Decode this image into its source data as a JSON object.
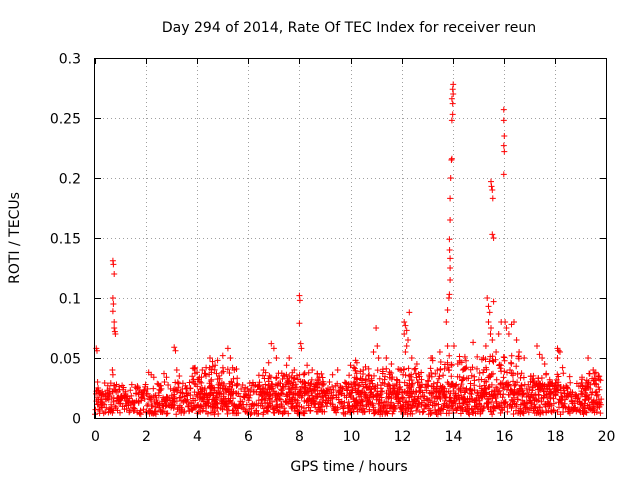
{
  "chart_data": {
    "type": "scatter",
    "title": "Day 294 of 2014, Rate Of TEC Index for receiver reun",
    "xlabel": "GPS time / hours",
    "ylabel": "ROTI / TECUs",
    "xlim": [
      0,
      20
    ],
    "ylim": [
      0,
      0.3
    ],
    "xticks": [
      0,
      2,
      4,
      6,
      8,
      10,
      12,
      14,
      16,
      18,
      20
    ],
    "yticks": [
      0,
      0.05,
      0.1,
      0.15,
      0.2,
      0.25,
      0.3
    ],
    "xtick_labels": [
      "0",
      "2",
      "4",
      "6",
      "8",
      "10",
      "12",
      "14",
      "16",
      "18",
      "20"
    ],
    "ytick_labels": [
      "0",
      "0.05",
      "0.1",
      "0.15",
      "0.2",
      "0.25",
      "0.3"
    ],
    "grid": true,
    "marker": "plus",
    "marker_color": "#ff0000",
    "baseline": {
      "x_start": 0.0,
      "x_end": 19.8,
      "step": 0.02,
      "y_min": 0.003,
      "y_max": 0.03
    },
    "points": [
      {
        "x": 0.05,
        "y": 0.058
      },
      {
        "x": 0.08,
        "y": 0.056
      },
      {
        "x": 0.1,
        "y": 0.03
      },
      {
        "x": 0.12,
        "y": 0.025
      },
      {
        "x": 0.7,
        "y": 0.131
      },
      {
        "x": 0.72,
        "y": 0.128
      },
      {
        "x": 0.75,
        "y": 0.12
      },
      {
        "x": 0.7,
        "y": 0.1
      },
      {
        "x": 0.72,
        "y": 0.095
      },
      {
        "x": 0.7,
        "y": 0.089
      },
      {
        "x": 0.75,
        "y": 0.08
      },
      {
        "x": 0.75,
        "y": 0.075
      },
      {
        "x": 0.78,
        "y": 0.072
      },
      {
        "x": 0.8,
        "y": 0.07
      },
      {
        "x": 0.68,
        "y": 0.04
      },
      {
        "x": 0.7,
        "y": 0.036
      },
      {
        "x": 2.1,
        "y": 0.038
      },
      {
        "x": 2.2,
        "y": 0.036
      },
      {
        "x": 2.3,
        "y": 0.034
      },
      {
        "x": 2.7,
        "y": 0.037
      },
      {
        "x": 2.8,
        "y": 0.034
      },
      {
        "x": 3.1,
        "y": 0.059
      },
      {
        "x": 3.15,
        "y": 0.056
      },
      {
        "x": 3.2,
        "y": 0.04
      },
      {
        "x": 3.3,
        "y": 0.035
      },
      {
        "x": 4.5,
        "y": 0.05
      },
      {
        "x": 4.6,
        "y": 0.047
      },
      {
        "x": 4.7,
        "y": 0.044
      },
      {
        "x": 4.8,
        "y": 0.048
      },
      {
        "x": 5.0,
        "y": 0.052
      },
      {
        "x": 5.2,
        "y": 0.058
      },
      {
        "x": 5.3,
        "y": 0.05
      },
      {
        "x": 4.2,
        "y": 0.04
      },
      {
        "x": 4.35,
        "y": 0.042
      },
      {
        "x": 6.8,
        "y": 0.046
      },
      {
        "x": 6.9,
        "y": 0.062
      },
      {
        "x": 7.0,
        "y": 0.058
      },
      {
        "x": 7.1,
        "y": 0.05
      },
      {
        "x": 6.6,
        "y": 0.04
      },
      {
        "x": 7.5,
        "y": 0.044
      },
      {
        "x": 7.6,
        "y": 0.05
      },
      {
        "x": 7.8,
        "y": 0.04
      },
      {
        "x": 8.0,
        "y": 0.102
      },
      {
        "x": 8.02,
        "y": 0.098
      },
      {
        "x": 8.0,
        "y": 0.079
      },
      {
        "x": 8.05,
        "y": 0.062
      },
      {
        "x": 8.08,
        "y": 0.058
      },
      {
        "x": 8.3,
        "y": 0.044
      },
      {
        "x": 8.5,
        "y": 0.04
      },
      {
        "x": 8.7,
        "y": 0.037
      },
      {
        "x": 9.3,
        "y": 0.036
      },
      {
        "x": 9.5,
        "y": 0.04
      },
      {
        "x": 10.0,
        "y": 0.044
      },
      {
        "x": 10.2,
        "y": 0.048
      },
      {
        "x": 10.25,
        "y": 0.046
      },
      {
        "x": 10.5,
        "y": 0.04
      },
      {
        "x": 11.0,
        "y": 0.075
      },
      {
        "x": 11.05,
        "y": 0.06
      },
      {
        "x": 10.9,
        "y": 0.055
      },
      {
        "x": 11.1,
        "y": 0.05
      },
      {
        "x": 11.4,
        "y": 0.05
      },
      {
        "x": 11.6,
        "y": 0.045
      },
      {
        "x": 12.1,
        "y": 0.08
      },
      {
        "x": 12.15,
        "y": 0.077
      },
      {
        "x": 12.2,
        "y": 0.073
      },
      {
        "x": 12.1,
        "y": 0.07
      },
      {
        "x": 12.25,
        "y": 0.065
      },
      {
        "x": 12.2,
        "y": 0.06
      },
      {
        "x": 12.3,
        "y": 0.088
      },
      {
        "x": 12.15,
        "y": 0.055
      },
      {
        "x": 12.4,
        "y": 0.05
      },
      {
        "x": 12.6,
        "y": 0.045
      },
      {
        "x": 13.2,
        "y": 0.05
      },
      {
        "x": 13.5,
        "y": 0.055
      },
      {
        "x": 13.75,
        "y": 0.08
      },
      {
        "x": 13.8,
        "y": 0.09
      },
      {
        "x": 13.8,
        "y": 0.06
      },
      {
        "x": 13.85,
        "y": 0.1
      },
      {
        "x": 13.87,
        "y": 0.103
      },
      {
        "x": 13.9,
        "y": 0.115
      },
      {
        "x": 13.9,
        "y": 0.125
      },
      {
        "x": 13.9,
        "y": 0.133
      },
      {
        "x": 13.88,
        "y": 0.14
      },
      {
        "x": 13.87,
        "y": 0.149
      },
      {
        "x": 13.9,
        "y": 0.165
      },
      {
        "x": 13.9,
        "y": 0.183
      },
      {
        "x": 13.92,
        "y": 0.2
      },
      {
        "x": 13.95,
        "y": 0.215
      },
      {
        "x": 13.97,
        "y": 0.216
      },
      {
        "x": 13.97,
        "y": 0.248
      },
      {
        "x": 14.0,
        "y": 0.253
      },
      {
        "x": 14.0,
        "y": 0.262
      },
      {
        "x": 13.97,
        "y": 0.266
      },
      {
        "x": 14.02,
        "y": 0.27
      },
      {
        "x": 14.0,
        "y": 0.274
      },
      {
        "x": 14.02,
        "y": 0.278
      },
      {
        "x": 14.05,
        "y": 0.06
      },
      {
        "x": 14.2,
        "y": 0.045
      },
      {
        "x": 14.4,
        "y": 0.04
      },
      {
        "x": 14.8,
        "y": 0.063
      },
      {
        "x": 15.2,
        "y": 0.05
      },
      {
        "x": 15.3,
        "y": 0.06
      },
      {
        "x": 15.35,
        "y": 0.1
      },
      {
        "x": 15.4,
        "y": 0.093
      },
      {
        "x": 15.45,
        "y": 0.088
      },
      {
        "x": 15.4,
        "y": 0.08
      },
      {
        "x": 15.5,
        "y": 0.075
      },
      {
        "x": 15.48,
        "y": 0.07
      },
      {
        "x": 15.55,
        "y": 0.065
      },
      {
        "x": 15.5,
        "y": 0.197
      },
      {
        "x": 15.52,
        "y": 0.193
      },
      {
        "x": 15.55,
        "y": 0.19
      },
      {
        "x": 15.57,
        "y": 0.183
      },
      {
        "x": 15.55,
        "y": 0.153
      },
      {
        "x": 15.6,
        "y": 0.15
      },
      {
        "x": 15.6,
        "y": 0.097
      },
      {
        "x": 15.7,
        "y": 0.055
      },
      {
        "x": 15.8,
        "y": 0.07
      },
      {
        "x": 15.9,
        "y": 0.08
      },
      {
        "x": 16.0,
        "y": 0.257
      },
      {
        "x": 16.0,
        "y": 0.248
      },
      {
        "x": 16.02,
        "y": 0.235
      },
      {
        "x": 16.0,
        "y": 0.227
      },
      {
        "x": 16.02,
        "y": 0.222
      },
      {
        "x": 16.0,
        "y": 0.203
      },
      {
        "x": 16.05,
        "y": 0.08
      },
      {
        "x": 16.1,
        "y": 0.075
      },
      {
        "x": 16.2,
        "y": 0.07
      },
      {
        "x": 16.3,
        "y": 0.078
      },
      {
        "x": 16.4,
        "y": 0.08
      },
      {
        "x": 16.5,
        "y": 0.065
      },
      {
        "x": 16.6,
        "y": 0.055
      },
      {
        "x": 16.8,
        "y": 0.05
      },
      {
        "x": 17.3,
        "y": 0.06
      },
      {
        "x": 17.4,
        "y": 0.053
      },
      {
        "x": 17.5,
        "y": 0.05
      },
      {
        "x": 17.6,
        "y": 0.045
      },
      {
        "x": 18.1,
        "y": 0.058
      },
      {
        "x": 18.15,
        "y": 0.056
      },
      {
        "x": 18.2,
        "y": 0.055
      },
      {
        "x": 18.1,
        "y": 0.05
      },
      {
        "x": 18.3,
        "y": 0.042
      },
      {
        "x": 19.3,
        "y": 0.05
      },
      {
        "x": 19.5,
        "y": 0.04
      },
      {
        "x": 19.6,
        "y": 0.038
      },
      {
        "x": 19.7,
        "y": 0.035
      }
    ],
    "activity_bands": [
      {
        "x0": 3.8,
        "x1": 5.6,
        "amp": 0.025
      },
      {
        "x0": 6.4,
        "x1": 9.0,
        "amp": 0.02
      },
      {
        "x0": 9.8,
        "x1": 12.8,
        "amp": 0.025
      },
      {
        "x0": 13.0,
        "x1": 16.8,
        "amp": 0.035
      },
      {
        "x0": 17.0,
        "x1": 18.6,
        "amp": 0.02
      },
      {
        "x0": 19.0,
        "x1": 19.8,
        "amp": 0.02
      }
    ]
  }
}
